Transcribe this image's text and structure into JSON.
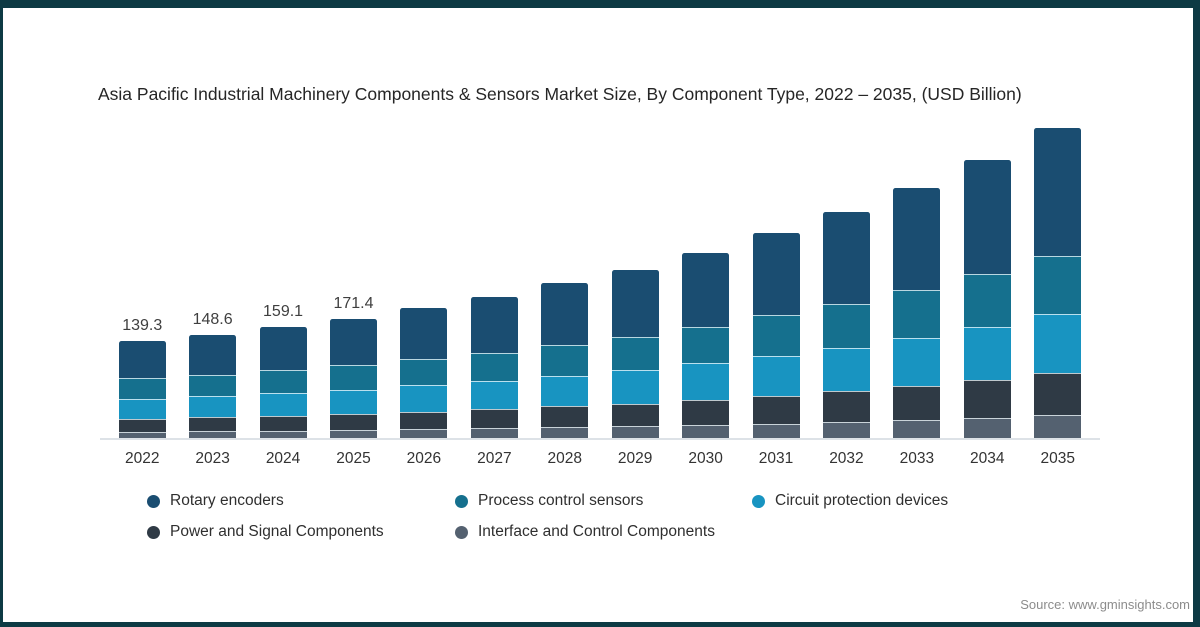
{
  "source_note": "Source: www.gminsights.com",
  "colors": {
    "frame_border": "#0d3a44",
    "background": "#ffffff",
    "axis_line": "#dde2e7",
    "title_text": "#262626",
    "tick_text": "#333333",
    "value_label_text": "#3f3f3f",
    "source_text": "#8c8c8c"
  },
  "chart_data": {
    "type": "bar",
    "stacked": true,
    "title": "Asia Pacific Industrial Machinery Components & Sensors Market Size, By Component Type, 2022 – 2035, (USD Billion)",
    "xlabel": "",
    "ylabel": "",
    "value_unit": "USD Billion",
    "grid": false,
    "y_axis_visible": false,
    "legend_position": "bottom",
    "categories": [
      "2022",
      "2023",
      "2024",
      "2025",
      "2026",
      "2027",
      "2028",
      "2029",
      "2030",
      "2031",
      "2032",
      "2033",
      "2034",
      "2035"
    ],
    "bar_total_labels": [
      "139.3",
      "148.6",
      "159.1",
      "171.4",
      "",
      "",
      "",
      "",
      "",
      "",
      "",
      "",
      "",
      ""
    ],
    "totals": [
      139.3,
      148.6,
      159.1,
      171.4,
      187.2,
      202.5,
      222.1,
      242.0,
      266.3,
      295.2,
      324.1,
      359.8,
      398.9,
      445.2
    ],
    "series": [
      {
        "name": "Rotary encoders",
        "color": "#1a4d71",
        "values": [
          53.6,
          57.5,
          61.9,
          67.1,
          73.6,
          80.1,
          88.3,
          96.7,
          106.9,
          119.2,
          131.5,
          146.7,
          163.5,
          183.4
        ]
      },
      {
        "name": "Process control sensors",
        "color": "#15708e",
        "values": [
          29.0,
          30.7,
          32.6,
          34.9,
          37.9,
          40.6,
          44.2,
          47.9,
          52.3,
          57.5,
          62.7,
          69.1,
          76.0,
          84.1
        ]
      },
      {
        "name": "Circuit protection devices",
        "color": "#1894c1",
        "values": [
          29.0,
          30.7,
          32.6,
          34.9,
          37.9,
          40.6,
          44.2,
          47.9,
          52.3,
          57.5,
          62.7,
          69.1,
          76.0,
          84.1
        ]
      },
      {
        "name": "Power and Signal Components",
        "color": "#2f3a45",
        "values": [
          18.9,
          20.2,
          21.6,
          23.3,
          25.5,
          27.5,
          30.2,
          32.9,
          36.2,
          40.2,
          44.1,
          48.9,
          54.3,
          60.5
        ]
      },
      {
        "name": "Interface and Control Components",
        "color": "#546170",
        "values": [
          8.8,
          9.5,
          10.4,
          11.2,
          12.3,
          13.7,
          15.2,
          16.6,
          18.6,
          20.8,
          23.1,
          26.0,
          29.1,
          33.1
        ]
      }
    ]
  }
}
